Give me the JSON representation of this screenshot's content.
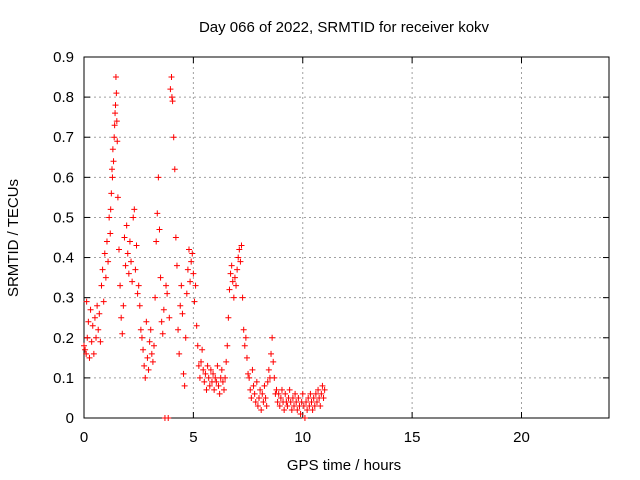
{
  "chart_data": {
    "type": "scatter",
    "title": "Day 066 of 2022, SRMTID for receiver kokv",
    "xlabel": "GPS time / hours",
    "ylabel": "SRMTID / TECUs",
    "xlim": [
      0,
      24
    ],
    "ylim": [
      0,
      0.9
    ],
    "xticks": [
      0,
      5,
      10,
      15,
      20
    ],
    "yticks": [
      0,
      0.1,
      0.2,
      0.3,
      0.4,
      0.5,
      0.6,
      0.7,
      0.8,
      0.9
    ],
    "xtick_labels": [
      "0",
      "5",
      "10",
      "15",
      "20"
    ],
    "ytick_labels": [
      "0",
      "0.1",
      "0.2",
      "0.3",
      "0.4",
      "0.5",
      "0.6",
      "0.7",
      "0.8",
      "0.9"
    ],
    "grid": true,
    "marker": "+",
    "color": "#ff0000",
    "series": [
      {
        "name": "SRMTID",
        "points": [
          [
            0.0,
            0.18
          ],
          [
            0.05,
            0.17
          ],
          [
            0.1,
            0.16
          ],
          [
            0.12,
            0.29
          ],
          [
            0.15,
            0.2
          ],
          [
            0.2,
            0.24
          ],
          [
            0.25,
            0.15
          ],
          [
            0.3,
            0.27
          ],
          [
            0.35,
            0.19
          ],
          [
            0.4,
            0.23
          ],
          [
            0.45,
            0.16
          ],
          [
            0.5,
            0.25
          ],
          [
            0.55,
            0.2
          ],
          [
            0.6,
            0.28
          ],
          [
            0.65,
            0.22
          ],
          [
            0.7,
            0.26
          ],
          [
            0.75,
            0.19
          ],
          [
            0.8,
            0.33
          ],
          [
            0.85,
            0.37
          ],
          [
            0.9,
            0.29
          ],
          [
            0.95,
            0.41
          ],
          [
            1.0,
            0.35
          ],
          [
            1.05,
            0.44
          ],
          [
            1.1,
            0.39
          ],
          [
            1.15,
            0.5
          ],
          [
            1.2,
            0.46
          ],
          [
            1.22,
            0.52
          ],
          [
            1.25,
            0.56
          ],
          [
            1.28,
            0.62
          ],
          [
            1.3,
            0.6
          ],
          [
            1.32,
            0.67
          ],
          [
            1.35,
            0.64
          ],
          [
            1.38,
            0.7
          ],
          [
            1.4,
            0.73
          ],
          [
            1.42,
            0.76
          ],
          [
            1.44,
            0.78
          ],
          [
            1.46,
            0.85
          ],
          [
            1.48,
            0.81
          ],
          [
            1.5,
            0.74
          ],
          [
            1.52,
            0.69
          ],
          [
            1.55,
            0.55
          ],
          [
            1.6,
            0.42
          ],
          [
            1.65,
            0.33
          ],
          [
            1.7,
            0.25
          ],
          [
            1.75,
            0.21
          ],
          [
            1.8,
            0.28
          ],
          [
            1.85,
            0.45
          ],
          [
            1.9,
            0.38
          ],
          [
            1.95,
            0.48
          ],
          [
            2.0,
            0.41
          ],
          [
            2.05,
            0.36
          ],
          [
            2.1,
            0.44
          ],
          [
            2.15,
            0.39
          ],
          [
            2.2,
            0.34
          ],
          [
            2.25,
            0.5
          ],
          [
            2.3,
            0.52
          ],
          [
            2.35,
            0.37
          ],
          [
            2.4,
            0.43
          ],
          [
            2.45,
            0.31
          ],
          [
            2.5,
            0.33
          ],
          [
            2.55,
            0.28
          ],
          [
            2.6,
            0.22
          ],
          [
            2.65,
            0.2
          ],
          [
            2.7,
            0.17
          ],
          [
            2.75,
            0.13
          ],
          [
            2.8,
            0.1
          ],
          [
            2.85,
            0.24
          ],
          [
            2.9,
            0.15
          ],
          [
            2.95,
            0.12
          ],
          [
            3.0,
            0.19
          ],
          [
            3.05,
            0.22
          ],
          [
            3.1,
            0.16
          ],
          [
            3.15,
            0.14
          ],
          [
            3.2,
            0.18
          ],
          [
            3.25,
            0.3
          ],
          [
            3.3,
            0.44
          ],
          [
            3.35,
            0.51
          ],
          [
            3.4,
            0.6
          ],
          [
            3.45,
            0.47
          ],
          [
            3.5,
            0.35
          ],
          [
            3.55,
            0.24
          ],
          [
            3.6,
            0.21
          ],
          [
            3.65,
            0.27
          ],
          [
            3.7,
            0.0
          ],
          [
            3.75,
            0.33
          ],
          [
            3.8,
            0.31
          ],
          [
            3.85,
            0.0
          ],
          [
            3.9,
            0.25
          ],
          [
            3.95,
            0.82
          ],
          [
            4.0,
            0.85
          ],
          [
            4.02,
            0.8
          ],
          [
            4.05,
            0.79
          ],
          [
            4.1,
            0.7
          ],
          [
            4.15,
            0.62
          ],
          [
            4.2,
            0.45
          ],
          [
            4.25,
            0.38
          ],
          [
            4.3,
            0.22
          ],
          [
            4.35,
            0.16
          ],
          [
            4.4,
            0.28
          ],
          [
            4.45,
            0.33
          ],
          [
            4.5,
            0.26
          ],
          [
            4.55,
            0.11
          ],
          [
            4.6,
            0.08
          ],
          [
            4.65,
            0.2
          ],
          [
            4.7,
            0.31
          ],
          [
            4.75,
            0.37
          ],
          [
            4.8,
            0.42
          ],
          [
            4.85,
            0.34
          ],
          [
            4.9,
            0.39
          ],
          [
            4.95,
            0.41
          ],
          [
            5.0,
            0.36
          ],
          [
            5.05,
            0.29
          ],
          [
            5.1,
            0.33
          ],
          [
            5.15,
            0.23
          ],
          [
            5.2,
            0.18
          ],
          [
            5.25,
            0.13
          ],
          [
            5.3,
            0.1
          ],
          [
            5.35,
            0.14
          ],
          [
            5.4,
            0.17
          ],
          [
            5.45,
            0.12
          ],
          [
            5.5,
            0.09
          ],
          [
            5.55,
            0.11
          ],
          [
            5.6,
            0.07
          ],
          [
            5.65,
            0.13
          ],
          [
            5.7,
            0.1
          ],
          [
            5.75,
            0.08
          ],
          [
            5.8,
            0.12
          ],
          [
            5.85,
            0.09
          ],
          [
            5.9,
            0.11
          ],
          [
            5.95,
            0.07
          ],
          [
            6.0,
            0.1
          ],
          [
            6.05,
            0.09
          ],
          [
            6.1,
            0.13
          ],
          [
            6.15,
            0.08
          ],
          [
            6.2,
            0.06
          ],
          [
            6.25,
            0.1
          ],
          [
            6.3,
            0.12
          ],
          [
            6.35,
            0.09
          ],
          [
            6.4,
            0.07
          ],
          [
            6.45,
            0.1
          ],
          [
            6.5,
            0.14
          ],
          [
            6.55,
            0.18
          ],
          [
            6.6,
            0.25
          ],
          [
            6.65,
            0.32
          ],
          [
            6.7,
            0.36
          ],
          [
            6.75,
            0.38
          ],
          [
            6.8,
            0.34
          ],
          [
            6.85,
            0.3
          ],
          [
            6.9,
            0.35
          ],
          [
            6.95,
            0.33
          ],
          [
            7.0,
            0.37
          ],
          [
            7.05,
            0.4
          ],
          [
            7.1,
            0.42
          ],
          [
            7.15,
            0.39
          ],
          [
            7.2,
            0.43
          ],
          [
            7.25,
            0.3
          ],
          [
            7.3,
            0.22
          ],
          [
            7.35,
            0.18
          ],
          [
            7.4,
            0.2
          ],
          [
            7.45,
            0.15
          ],
          [
            7.5,
            0.11
          ],
          [
            7.55,
            0.1
          ],
          [
            7.6,
            0.07
          ],
          [
            7.65,
            0.05
          ],
          [
            7.7,
            0.12
          ],
          [
            7.75,
            0.08
          ],
          [
            7.8,
            0.06
          ],
          [
            7.85,
            0.04
          ],
          [
            7.9,
            0.09
          ],
          [
            7.95,
            0.03
          ],
          [
            8.0,
            0.05
          ],
          [
            8.05,
            0.07
          ],
          [
            8.1,
            0.02
          ],
          [
            8.15,
            0.06
          ],
          [
            8.2,
            0.04
          ],
          [
            8.25,
            0.08
          ],
          [
            8.3,
            0.05
          ],
          [
            8.35,
            0.03
          ],
          [
            8.4,
            0.09
          ],
          [
            8.45,
            0.12
          ],
          [
            8.5,
            0.1
          ],
          [
            8.55,
            0.16
          ],
          [
            8.6,
            0.2
          ],
          [
            8.65,
            0.14
          ],
          [
            8.7,
            0.1
          ],
          [
            8.75,
            0.06
          ],
          [
            8.8,
            0.07
          ],
          [
            8.85,
            0.04
          ],
          [
            8.9,
            0.06
          ],
          [
            8.95,
            0.03
          ],
          [
            9.0,
            0.05
          ],
          [
            9.05,
            0.07
          ],
          [
            9.1,
            0.04
          ],
          [
            9.15,
            0.02
          ],
          [
            9.2,
            0.06
          ],
          [
            9.25,
            0.04
          ],
          [
            9.3,
            0.03
          ],
          [
            9.35,
            0.05
          ],
          [
            9.4,
            0.07
          ],
          [
            9.45,
            0.04
          ],
          [
            9.5,
            0.02
          ],
          [
            9.55,
            0.05
          ],
          [
            9.6,
            0.03
          ],
          [
            9.65,
            0.06
          ],
          [
            9.7,
            0.04
          ],
          [
            9.75,
            0.02
          ],
          [
            9.8,
            0.05
          ],
          [
            9.85,
            0.03
          ],
          [
            9.9,
            0.01
          ],
          [
            9.95,
            0.04
          ],
          [
            10.0,
            0.06
          ],
          [
            10.05,
            0.03
          ],
          [
            10.1,
            0.0
          ],
          [
            10.15,
            0.04
          ],
          [
            10.2,
            0.02
          ],
          [
            10.25,
            0.05
          ],
          [
            10.3,
            0.03
          ],
          [
            10.35,
            0.06
          ],
          [
            10.4,
            0.04
          ],
          [
            10.45,
            0.02
          ],
          [
            10.5,
            0.05
          ],
          [
            10.55,
            0.03
          ],
          [
            10.6,
            0.06
          ],
          [
            10.65,
            0.04
          ],
          [
            10.7,
            0.07
          ],
          [
            10.75,
            0.05
          ],
          [
            10.8,
            0.03
          ],
          [
            10.85,
            0.06
          ],
          [
            10.9,
            0.08
          ],
          [
            10.95,
            0.05
          ],
          [
            11.0,
            0.07
          ]
        ]
      }
    ]
  }
}
